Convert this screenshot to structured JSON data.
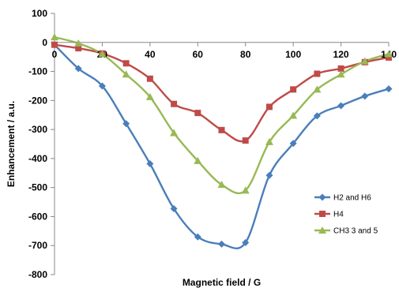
{
  "chart_data": {
    "type": "line",
    "title": "",
    "xlabel": "Magnetic field / G",
    "ylabel": "Enhancement / a.u.",
    "xlim": [
      0,
      140
    ],
    "ylim": [
      -800,
      100
    ],
    "x_ticks": [
      "0",
      "20",
      "40",
      "60",
      "80",
      "100",
      "120",
      "140"
    ],
    "y_ticks": [
      "100",
      "0",
      "-100",
      "-200",
      "-300",
      "-400",
      "-500",
      "-600",
      "-700",
      "-800"
    ],
    "grid": false,
    "legend_position": "right",
    "smooth": true,
    "series": [
      {
        "name": "H2 and H6",
        "color": "#4A7EBB",
        "marker": "diamond",
        "x": [
          0,
          10,
          20,
          30,
          40,
          50,
          60,
          70,
          80,
          90,
          100,
          110,
          120,
          130,
          140
        ],
        "y": [
          -8,
          -90,
          -150,
          -280,
          -418,
          -573,
          -670,
          -695,
          -690,
          -458,
          -348,
          -253,
          -218,
          -185,
          -160
        ]
      },
      {
        "name": "H4",
        "color": "#BE4B48",
        "marker": "square",
        "x": [
          0,
          10,
          20,
          30,
          40,
          50,
          60,
          70,
          80,
          90,
          100,
          110,
          120,
          130,
          140
        ],
        "y": [
          -8,
          -20,
          -38,
          -72,
          -125,
          -212,
          -243,
          -302,
          -338,
          -222,
          -162,
          -108,
          -90,
          -68,
          -52
        ]
      },
      {
        "name": "CH3 3 and 5",
        "color": "#98B954",
        "marker": "triangle",
        "x": [
          0,
          10,
          20,
          30,
          40,
          50,
          60,
          70,
          80,
          90,
          100,
          110,
          120,
          130,
          140
        ],
        "y": [
          18,
          -3,
          -40,
          -110,
          -188,
          -312,
          -408,
          -490,
          -510,
          -343,
          -252,
          -162,
          -110,
          -65,
          -40
        ]
      }
    ]
  }
}
